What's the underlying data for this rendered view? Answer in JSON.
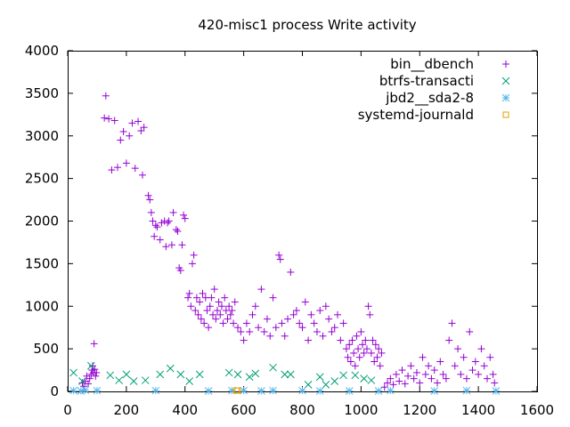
{
  "chart_data": {
    "type": "scatter",
    "title": "420-misc1 process Write activity",
    "xlabel": "",
    "ylabel": "",
    "xlim": [
      0,
      1600
    ],
    "ylim": [
      0,
      4000
    ],
    "xticks": [
      0,
      200,
      400,
      600,
      800,
      1000,
      1200,
      1400,
      1600
    ],
    "yticks": [
      0,
      500,
      1000,
      1500,
      2000,
      2500,
      3000,
      3500,
      4000
    ],
    "grid": false,
    "legend_position": "top-right",
    "series": [
      {
        "name": "bin__dbench",
        "marker": "plus",
        "color": "#9400d3",
        "points": [
          [
            50,
            100
          ],
          [
            55,
            60
          ],
          [
            60,
            120
          ],
          [
            65,
            180
          ],
          [
            70,
            90
          ],
          [
            75,
            150
          ],
          [
            80,
            200
          ],
          [
            83,
            250
          ],
          [
            85,
            300
          ],
          [
            88,
            220
          ],
          [
            90,
            560
          ],
          [
            92,
            260
          ],
          [
            95,
            180
          ],
          [
            98,
            220
          ],
          [
            125,
            3210
          ],
          [
            130,
            3470
          ],
          [
            140,
            3200
          ],
          [
            150,
            2600
          ],
          [
            160,
            3180
          ],
          [
            170,
            2630
          ],
          [
            180,
            2950
          ],
          [
            190,
            3050
          ],
          [
            200,
            2680
          ],
          [
            210,
            3000
          ],
          [
            220,
            3150
          ],
          [
            230,
            2620
          ],
          [
            240,
            3170
          ],
          [
            250,
            3060
          ],
          [
            255,
            2540
          ],
          [
            260,
            3100
          ],
          [
            275,
            2300
          ],
          [
            280,
            2250
          ],
          [
            285,
            2100
          ],
          [
            290,
            2000
          ],
          [
            295,
            1820
          ],
          [
            300,
            1950
          ],
          [
            305,
            1930
          ],
          [
            315,
            1780
          ],
          [
            320,
            1980
          ],
          [
            330,
            2000
          ],
          [
            335,
            1700
          ],
          [
            340,
            1980
          ],
          [
            345,
            2000
          ],
          [
            355,
            1720
          ],
          [
            360,
            2100
          ],
          [
            370,
            1900
          ],
          [
            375,
            1880
          ],
          [
            380,
            1450
          ],
          [
            385,
            1420
          ],
          [
            390,
            1720
          ],
          [
            395,
            2070
          ],
          [
            400,
            2030
          ],
          [
            410,
            1100
          ],
          [
            415,
            1150
          ],
          [
            420,
            1000
          ],
          [
            425,
            1500
          ],
          [
            430,
            1600
          ],
          [
            435,
            950
          ],
          [
            440,
            1100
          ],
          [
            445,
            900
          ],
          [
            450,
            1050
          ],
          [
            455,
            850
          ],
          [
            460,
            1150
          ],
          [
            465,
            800
          ],
          [
            470,
            1100
          ],
          [
            475,
            950
          ],
          [
            480,
            750
          ],
          [
            485,
            1000
          ],
          [
            490,
            1100
          ],
          [
            495,
            900
          ],
          [
            500,
            1200
          ],
          [
            505,
            850
          ],
          [
            510,
            950
          ],
          [
            515,
            1050
          ],
          [
            520,
            900
          ],
          [
            525,
            1000
          ],
          [
            530,
            800
          ],
          [
            535,
            1100
          ],
          [
            540,
            950
          ],
          [
            545,
            850
          ],
          [
            550,
            1000
          ],
          [
            555,
            900
          ],
          [
            560,
            950
          ],
          [
            565,
            800
          ],
          [
            570,
            1050
          ],
          [
            580,
            750
          ],
          [
            590,
            700
          ],
          [
            600,
            600
          ],
          [
            610,
            800
          ],
          [
            620,
            700
          ],
          [
            630,
            900
          ],
          [
            640,
            1000
          ],
          [
            650,
            750
          ],
          [
            660,
            1200
          ],
          [
            670,
            700
          ],
          [
            680,
            850
          ],
          [
            690,
            650
          ],
          [
            700,
            1100
          ],
          [
            710,
            750
          ],
          [
            720,
            1600
          ],
          [
            725,
            1550
          ],
          [
            730,
            800
          ],
          [
            740,
            650
          ],
          [
            750,
            850
          ],
          [
            760,
            1400
          ],
          [
            770,
            900
          ],
          [
            780,
            950
          ],
          [
            790,
            800
          ],
          [
            800,
            750
          ],
          [
            810,
            1050
          ],
          [
            820,
            600
          ],
          [
            830,
            900
          ],
          [
            840,
            800
          ],
          [
            850,
            700
          ],
          [
            860,
            950
          ],
          [
            870,
            650
          ],
          [
            880,
            1000
          ],
          [
            890,
            850
          ],
          [
            900,
            700
          ],
          [
            910,
            750
          ],
          [
            920,
            900
          ],
          [
            930,
            600
          ],
          [
            940,
            800
          ],
          [
            950,
            500
          ],
          [
            955,
            400
          ],
          [
            960,
            550
          ],
          [
            965,
            350
          ],
          [
            970,
            600
          ],
          [
            975,
            450
          ],
          [
            980,
            300
          ],
          [
            985,
            650
          ],
          [
            990,
            500
          ],
          [
            995,
            400
          ],
          [
            1000,
            700
          ],
          [
            1005,
            550
          ],
          [
            1010,
            450
          ],
          [
            1015,
            600
          ],
          [
            1020,
            500
          ],
          [
            1025,
            1000
          ],
          [
            1030,
            900
          ],
          [
            1035,
            450
          ],
          [
            1040,
            600
          ],
          [
            1045,
            350
          ],
          [
            1050,
            550
          ],
          [
            1055,
            400
          ],
          [
            1060,
            500
          ],
          [
            1065,
            300
          ],
          [
            1070,
            450
          ],
          [
            1080,
            50
          ],
          [
            1090,
            100
          ],
          [
            1100,
            150
          ],
          [
            1110,
            80
          ],
          [
            1120,
            200
          ],
          [
            1130,
            120
          ],
          [
            1140,
            250
          ],
          [
            1150,
            90
          ],
          [
            1160,
            180
          ],
          [
            1170,
            300
          ],
          [
            1180,
            150
          ],
          [
            1190,
            220
          ],
          [
            1200,
            100
          ],
          [
            1210,
            400
          ],
          [
            1220,
            200
          ],
          [
            1230,
            300
          ],
          [
            1240,
            150
          ],
          [
            1250,
            250
          ],
          [
            1260,
            100
          ],
          [
            1270,
            350
          ],
          [
            1280,
            200
          ],
          [
            1290,
            150
          ],
          [
            1300,
            600
          ],
          [
            1310,
            800
          ],
          [
            1320,
            300
          ],
          [
            1330,
            500
          ],
          [
            1340,
            200
          ],
          [
            1350,
            400
          ],
          [
            1360,
            150
          ],
          [
            1370,
            700
          ],
          [
            1380,
            250
          ],
          [
            1390,
            350
          ],
          [
            1400,
            200
          ],
          [
            1410,
            500
          ],
          [
            1420,
            300
          ],
          [
            1430,
            150
          ],
          [
            1440,
            400
          ],
          [
            1450,
            200
          ],
          [
            1455,
            100
          ]
        ]
      },
      {
        "name": "btrfs-transacti",
        "marker": "cross",
        "color": "#009e73",
        "points": [
          [
            20,
            220
          ],
          [
            50,
            120
          ],
          [
            80,
            300
          ],
          [
            145,
            190
          ],
          [
            175,
            130
          ],
          [
            200,
            200
          ],
          [
            225,
            120
          ],
          [
            265,
            130
          ],
          [
            315,
            200
          ],
          [
            350,
            270
          ],
          [
            385,
            200
          ],
          [
            415,
            120
          ],
          [
            450,
            200
          ],
          [
            550,
            220
          ],
          [
            580,
            200
          ],
          [
            620,
            170
          ],
          [
            640,
            210
          ],
          [
            700,
            280
          ],
          [
            740,
            200
          ],
          [
            760,
            200
          ],
          [
            820,
            80
          ],
          [
            860,
            170
          ],
          [
            880,
            80
          ],
          [
            910,
            120
          ],
          [
            940,
            190
          ],
          [
            980,
            190
          ],
          [
            1010,
            150
          ],
          [
            1035,
            130
          ]
        ]
      },
      {
        "name": "jbd2__sda2-8",
        "marker": "star",
        "color": "#56b4e9",
        "points": [
          [
            20,
            10
          ],
          [
            45,
            5
          ],
          [
            60,
            15
          ],
          [
            100,
            10
          ],
          [
            300,
            10
          ],
          [
            480,
            5
          ],
          [
            560,
            10
          ],
          [
            600,
            10
          ],
          [
            660,
            5
          ],
          [
            700,
            10
          ],
          [
            800,
            10
          ],
          [
            860,
            5
          ],
          [
            960,
            5
          ],
          [
            1060,
            5
          ],
          [
            1100,
            10
          ],
          [
            1250,
            5
          ],
          [
            1360,
            10
          ],
          [
            1460,
            5
          ]
        ]
      },
      {
        "name": "systemd-journald",
        "marker": "square",
        "color": "#e69f00",
        "points": [
          [
            575,
            10
          ],
          [
            580,
            10
          ]
        ]
      }
    ]
  }
}
